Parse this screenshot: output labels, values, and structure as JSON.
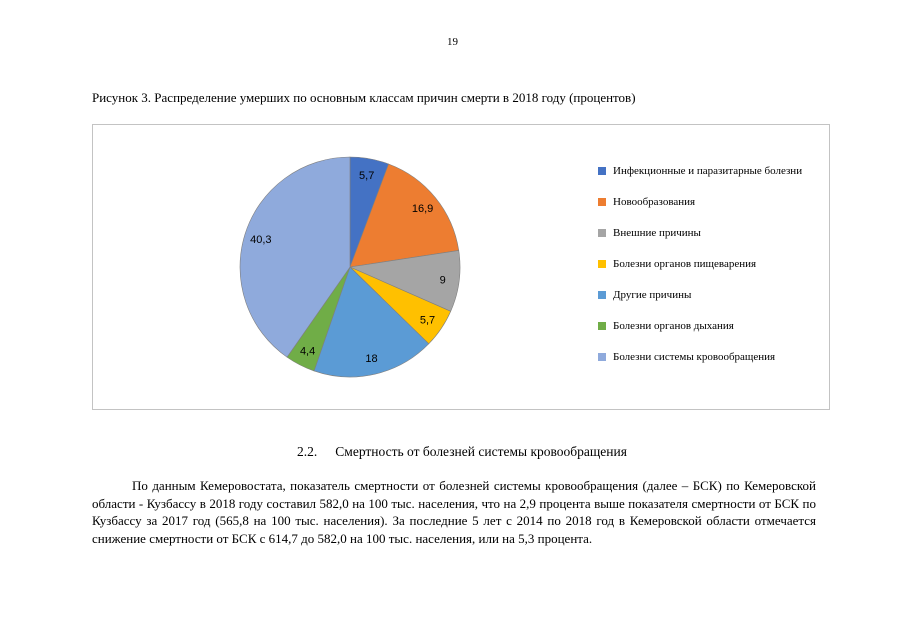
{
  "page": {
    "number": "19",
    "figure_caption": "Рисунок 3. Распределение умерших по основным классам причин смерти в 2018 году (процентов)",
    "section_heading_number": "2.2.",
    "section_heading_text": "Смертность от болезней системы кровообращения",
    "paragraph": "По данным Кемеровостата, показатель смертности от болезней системы кровообращения (далее –  БСК) по Кемеровской области - Кузбассу в 2018 году составил 582,0 на 100 тыс. населения, что на 2,9 процента выше показателя смертности  от  БСК  по  Кузбассу  за  2017  год  (565,8 на 100 тыс. населения). За последние 5 лет с  2014  по  2018  год в Кемеровской  области  отмечается  снижение  смертности от  БСК с   614,7 до 582,0 на 100 тыс. населения, или на 5,3 процента."
  },
  "chart_data": {
    "type": "pie",
    "title": "",
    "categories": [
      "Инфекционные и паразитарные болезни",
      "Новообразования",
      "Внешние причины",
      "Болезни органов пищеварения",
      "Другие причины",
      "Болезни органов дыхания",
      "Болезни системы кровообращения"
    ],
    "values": [
      5.7,
      16.9,
      9,
      5.7,
      18,
      4.4,
      40.3
    ],
    "labels": [
      "5,7",
      "16,9",
      "9",
      "5,7",
      "18",
      "4,4",
      "40,3"
    ],
    "colors": [
      "#4472C4",
      "#ED7D31",
      "#A5A5A5",
      "#FFC000",
      "#5B9BD5",
      "#70AD47",
      "#8FAADC"
    ],
    "slice_stroke": "#7f7f7f",
    "legend_position": "right",
    "start_angle_deg": 0,
    "direction": "clockwise"
  }
}
